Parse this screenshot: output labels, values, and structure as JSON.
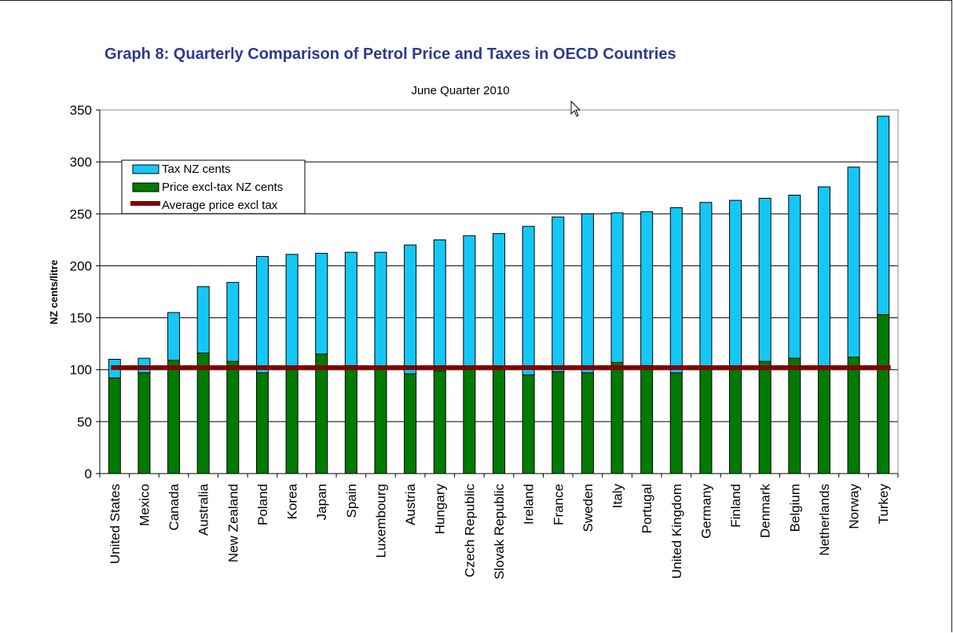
{
  "page_title": "Graph 8: Quarterly Comparison of Petrol Price and Taxes in OECD Countries",
  "chart_data": {
    "type": "bar",
    "stacked": true,
    "title": "June Quarter 2010",
    "ylabel": "NZ cents/litre",
    "xlabel": "",
    "ylim": [
      0,
      350
    ],
    "yticks": [
      0,
      50,
      100,
      150,
      200,
      250,
      300,
      350
    ],
    "grid": true,
    "legend_position": "top-left",
    "categories": [
      "United States",
      "Mexico",
      "Canada",
      "Australia",
      "New Zealand",
      "Poland",
      "Korea",
      "Japan",
      "Spain",
      "Luxembourg",
      "Austria",
      "Hungary",
      "Czech Republic",
      "Slovak Republic",
      "Ireland",
      "France",
      "Sweden",
      "Italy",
      "Portugal",
      "United Kingdom",
      "Germany",
      "Finland",
      "Denmark",
      "Belgium",
      "Netherlands",
      "Norway",
      "Turkey"
    ],
    "series": [
      {
        "name": "Price excl-tax NZ cents",
        "color": "#007a00",
        "values": [
          92,
          97,
          109,
          116,
          108,
          97,
          101,
          115,
          104,
          102,
          96,
          99,
          101,
          102,
          95,
          98,
          97,
          107,
          104,
          97,
          103,
          103,
          108,
          111,
          101,
          112,
          153
        ]
      },
      {
        "name": "Tax NZ cents",
        "color": "#14c8f5",
        "values": [
          18,
          14,
          46,
          64,
          76,
          112,
          110,
          97,
          109,
          111,
          124,
          126,
          128,
          129,
          143,
          149,
          153,
          144,
          148,
          159,
          158,
          160,
          157,
          157,
          175,
          183,
          191
        ]
      }
    ],
    "average_line": {
      "name": "Average price excl tax",
      "value": 102,
      "color": "#800000"
    }
  }
}
